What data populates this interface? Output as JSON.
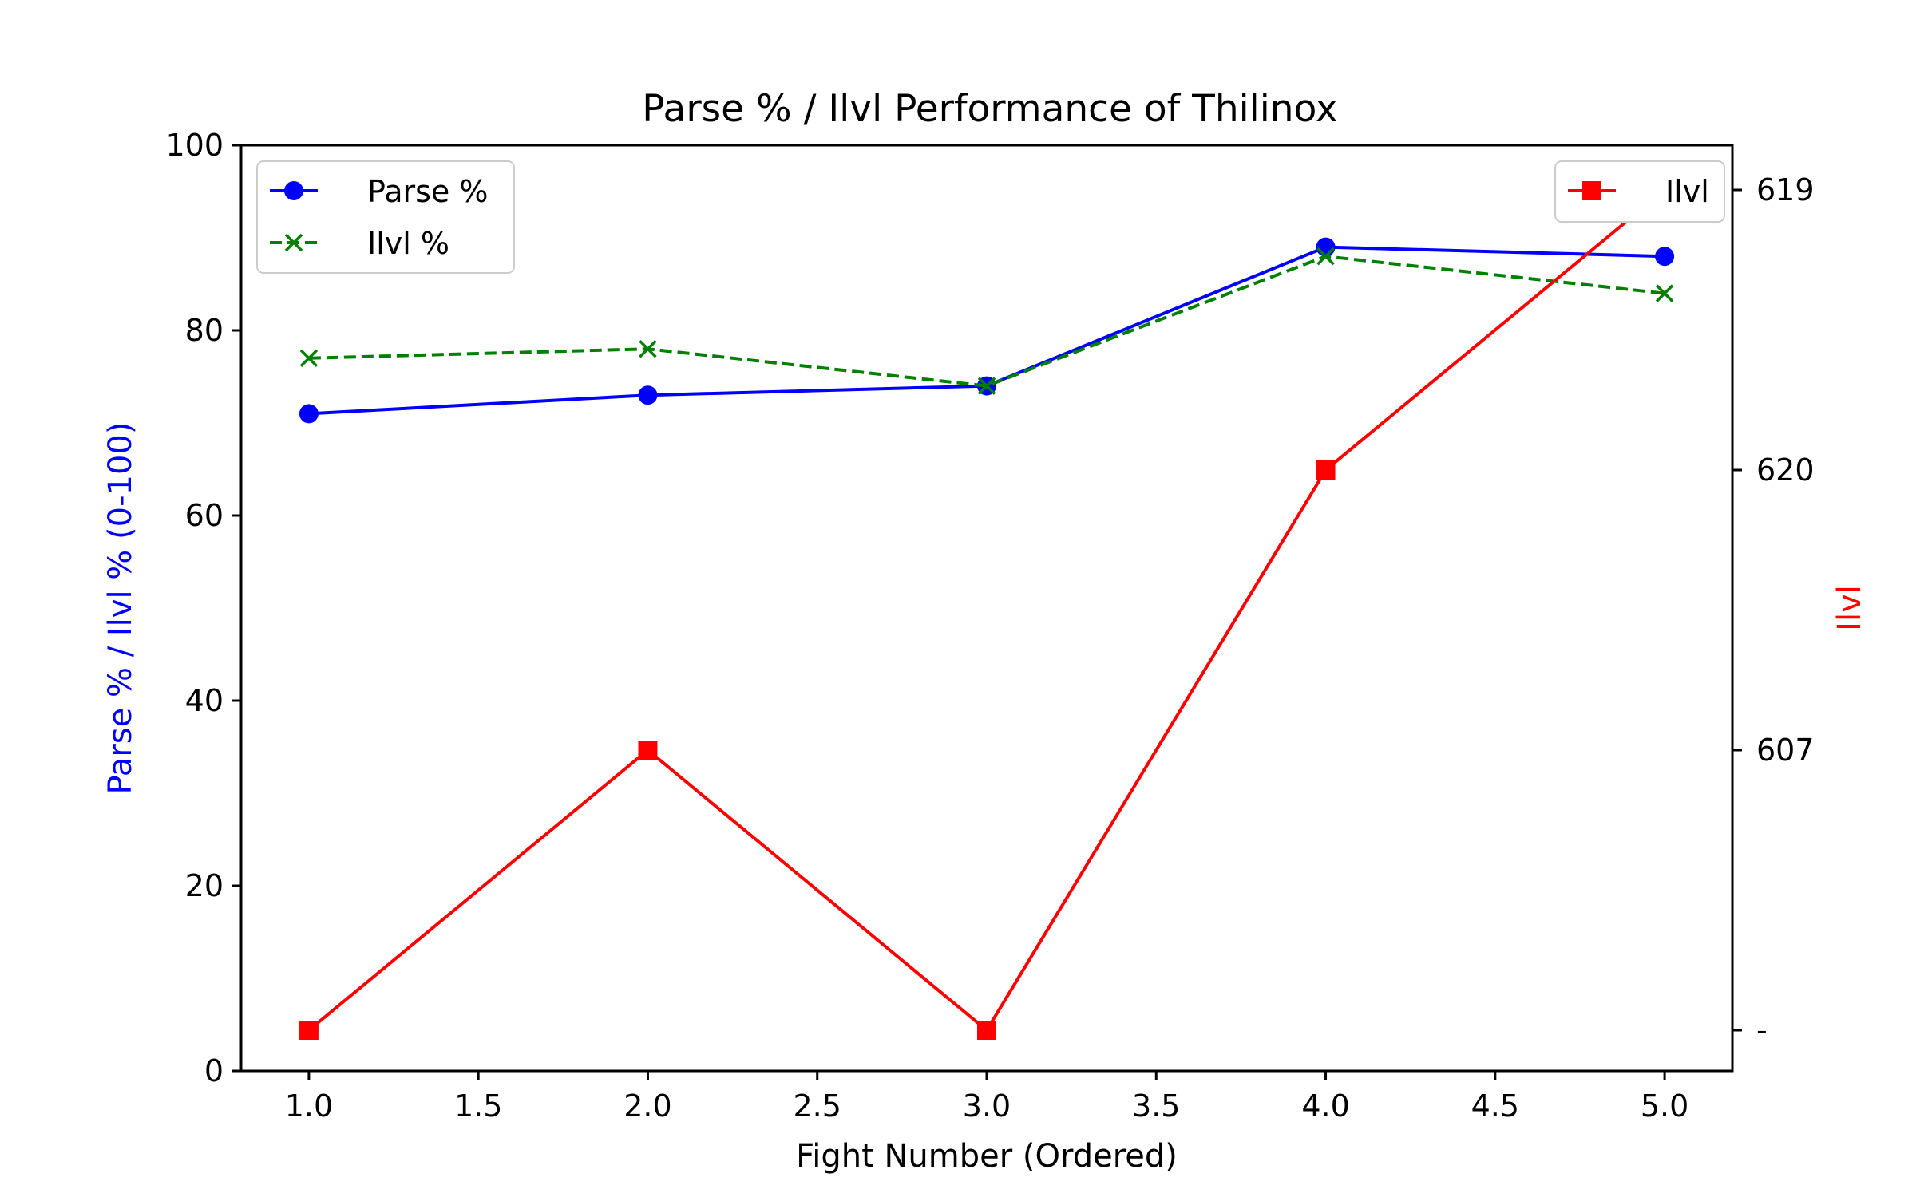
{
  "chart_data": {
    "type": "line",
    "title": "Parse % / Ilvl Performance of Thilinox",
    "xlabel": "Fight Number (Ordered)",
    "ylabel": "Parse % / Ilvl % (0-100)",
    "y2label": "Ilvl",
    "x": [
      1.0,
      2.0,
      3.0,
      4.0,
      5.0
    ],
    "xlim": [
      0.8,
      5.2
    ],
    "ylim": [
      0,
      100
    ],
    "xticks": [
      "1.0",
      "1.5",
      "2.0",
      "2.5",
      "3.0",
      "3.5",
      "4.0",
      "4.5",
      "5.0"
    ],
    "yticks": [
      "0",
      "20",
      "40",
      "60",
      "80",
      "100"
    ],
    "series": [
      {
        "name": "Parse %",
        "axis": "left",
        "values": [
          71,
          73,
          74,
          89,
          88
        ],
        "color": "#0000ff",
        "style": "solid",
        "marker": "circle"
      },
      {
        "name": "Ilvl %",
        "axis": "left",
        "values": [
          77,
          78,
          74,
          88,
          84
        ],
        "color": "#008000",
        "style": "dashed",
        "marker": "x"
      },
      {
        "name": "Ilvl",
        "axis": "right",
        "categories": [
          "-",
          "607",
          "-",
          "620",
          "619"
        ],
        "color": "#ff0000",
        "style": "solid",
        "marker": "square"
      }
    ],
    "y2_categories": [
      "-",
      "607",
      "620",
      "619"
    ],
    "grid": false,
    "legend_left": "top-left",
    "legend_right": "top-right",
    "colors": {
      "left_axis_label": "#0000ff",
      "right_axis_label": "#ff0000"
    }
  }
}
